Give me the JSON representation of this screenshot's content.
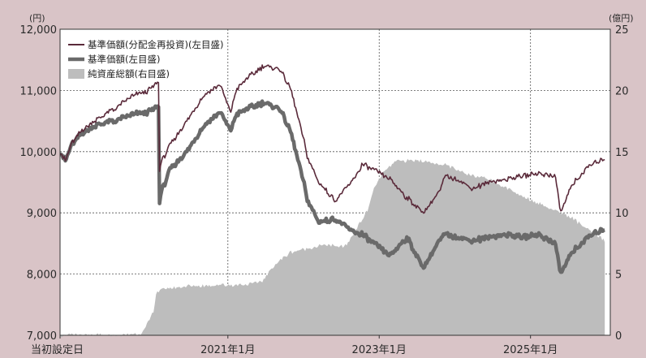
{
  "chart_data": {
    "type": "line",
    "left_unit": "(円)",
    "right_unit": "(億円)",
    "left_axis": {
      "ticks": [
        "12,000",
        "11,000",
        "10,000",
        "9,000",
        "8,000",
        "7,000"
      ],
      "ylim": [
        7000,
        12000
      ]
    },
    "right_axis": {
      "ticks": [
        "25",
        "20",
        "15",
        "10",
        "5",
        "0"
      ],
      "ylim": [
        0,
        25
      ]
    },
    "x_tick_labels": [
      "当初設定日",
      "2021年1月",
      "2023年1月",
      "2025年1月"
    ],
    "grid": true,
    "legend_position": "top-left",
    "colors": {
      "reinvested": "#5a2a3a",
      "nav": "#6a6a6a",
      "assets": "#bdbdbd",
      "background": "#d9c4c7"
    },
    "series": [
      {
        "name": "基準価額(分配金再投資)(左目盛)",
        "axis": "left",
        "x": [
          0,
          0.01,
          0.02,
          0.04,
          0.07,
          0.1,
          0.13,
          0.16,
          0.18,
          0.175,
          0.182,
          0.2,
          0.23,
          0.26,
          0.29,
          0.31,
          0.32,
          0.34,
          0.37,
          0.4,
          0.42,
          0.44,
          0.45,
          0.47,
          0.5,
          0.53,
          0.55,
          0.57,
          0.6,
          0.63,
          0.66,
          0.69,
          0.7,
          0.72,
          0.75,
          0.78,
          0.81,
          0.84,
          0.87,
          0.9,
          0.91,
          0.93,
          0.96,
          0.99
        ],
        "values": [
          10000,
          9850,
          10120,
          10350,
          10550,
          10700,
          10900,
          11000,
          11150,
          9050,
          9800,
          10100,
          10500,
          10900,
          11100,
          10650,
          11000,
          11200,
          11400,
          11350,
          11000,
          10300,
          9900,
          9500,
          9200,
          9500,
          9800,
          9700,
          9550,
          9250,
          9000,
          9350,
          9600,
          9550,
          9400,
          9500,
          9550,
          9600,
          9650,
          9600,
          9000,
          9450,
          9750,
          9900
        ]
      },
      {
        "name": "基準価額(左目盛)",
        "axis": "left",
        "x": [
          0,
          0.01,
          0.02,
          0.04,
          0.07,
          0.1,
          0.13,
          0.16,
          0.18,
          0.175,
          0.182,
          0.2,
          0.23,
          0.26,
          0.29,
          0.31,
          0.32,
          0.34,
          0.37,
          0.4,
          0.42,
          0.44,
          0.45,
          0.47,
          0.5,
          0.53,
          0.55,
          0.57,
          0.6,
          0.63,
          0.66,
          0.69,
          0.7,
          0.72,
          0.75,
          0.78,
          0.81,
          0.84,
          0.87,
          0.9,
          0.91,
          0.93,
          0.96,
          0.99
        ],
        "values": [
          10000,
          9850,
          10100,
          10300,
          10450,
          10500,
          10600,
          10650,
          10750,
          8400,
          9300,
          9700,
          10000,
          10400,
          10650,
          10350,
          10600,
          10700,
          10800,
          10700,
          10300,
          9600,
          9200,
          8850,
          8900,
          8700,
          8650,
          8500,
          8300,
          8600,
          8100,
          8550,
          8650,
          8600,
          8550,
          8600,
          8650,
          8600,
          8650,
          8500,
          8000,
          8350,
          8600,
          8750
        ]
      },
      {
        "name": "純資産総額(右目盛)",
        "axis": "right",
        "type": "area",
        "x": [
          0,
          0.08,
          0.11,
          0.15,
          0.16,
          0.17,
          0.175,
          0.19,
          0.23,
          0.28,
          0.32,
          0.35,
          0.37,
          0.39,
          0.42,
          0.47,
          0.49,
          0.5,
          0.52,
          0.54,
          0.56,
          0.57,
          0.59,
          0.61,
          0.65,
          0.68,
          0.69,
          0.7,
          0.72,
          0.74,
          0.77,
          0.8,
          0.83,
          0.87,
          0.9,
          0.93,
          0.96,
          0.99
        ],
        "values": [
          0,
          0,
          0,
          0.2,
          1.0,
          2.0,
          3.5,
          3.8,
          4.0,
          4.1,
          4.1,
          4.2,
          4.5,
          5.8,
          6.8,
          7.3,
          7.4,
          7.2,
          7.3,
          8.8,
          10.3,
          12.0,
          13.4,
          14.2,
          14.3,
          14.1,
          13.8,
          14.0,
          13.5,
          13.2,
          12.9,
          12.3,
          11.6,
          10.8,
          10.2,
          9.6,
          8.6,
          7.7
        ]
      }
    ]
  }
}
